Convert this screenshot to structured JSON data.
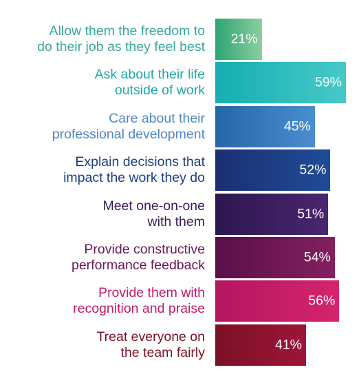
{
  "chart_data": {
    "type": "bar",
    "orientation": "horizontal",
    "categories": [
      "Allow them the freedom to\ndo their job as they feel best",
      "Ask about their life\noutside of work",
      "Care about their\nprofessional development",
      "Explain decisions that\nimpact the work they do",
      "Meet one-on-one\nwith them",
      "Provide constructive\nperformance feedback",
      "Provide them with\nrecognition and praise",
      "Treat everyone on\nthe team fairly"
    ],
    "values": [
      21,
      59,
      45,
      52,
      51,
      54,
      56,
      41
    ],
    "value_labels": [
      "21%",
      "59%",
      "45%",
      "52%",
      "51%",
      "54%",
      "56%",
      "41%"
    ],
    "value_suffix": "%",
    "title": "",
    "xlabel": "",
    "ylabel": "",
    "grid": false,
    "legend": "none"
  },
  "colors": {
    "labels": [
      "#3aa89a",
      "#1da8ab",
      "#4f86c6",
      "#1d3e7c",
      "#3b1b5c",
      "#6b1655",
      "#c31b67",
      "#7a1122"
    ],
    "bars_start": [
      "#2ea474",
      "#14afb2",
      "#2467a8",
      "#1c2f73",
      "#2d164f",
      "#5a0f4a",
      "#b51660",
      "#7b1026"
    ],
    "bars_end": [
      "#8bcea0",
      "#48c8c8",
      "#4b8ed0",
      "#1e4c96",
      "#4a2670",
      "#84205f",
      "#d4246d",
      "#9d1538"
    ]
  }
}
